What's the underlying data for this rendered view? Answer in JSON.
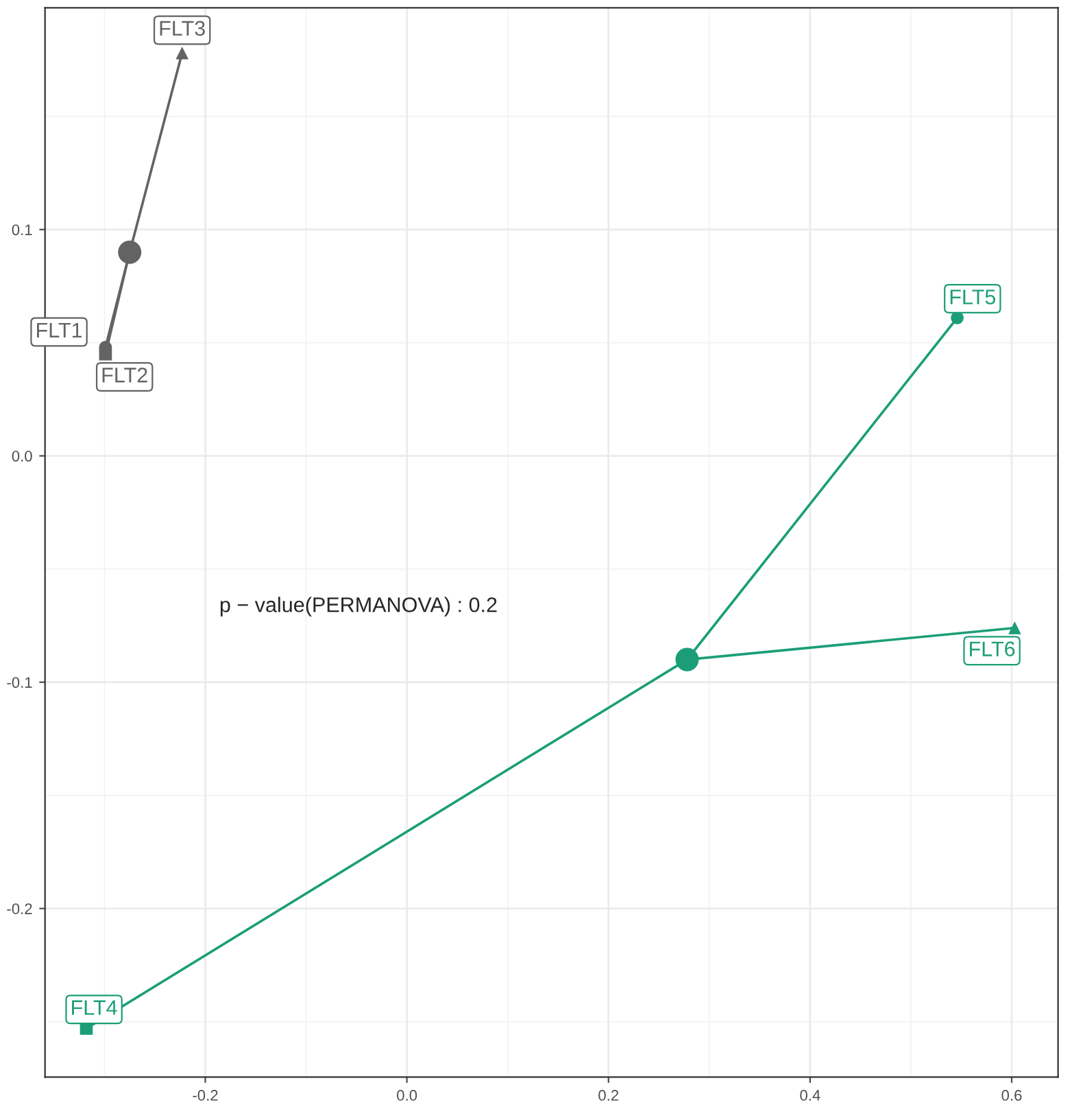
{
  "chart_data": {
    "type": "scatter",
    "xlim": [
      -0.359,
      0.646
    ],
    "ylim": [
      -0.2745,
      0.198
    ],
    "xticks": [
      -0.2,
      {
        "value": 0,
        "label": "0.0"
      },
      0.2,
      0.4,
      0.6
    ],
    "yticks": [
      -0.2,
      -0.1,
      {
        "value": 0,
        "label": "0.0"
      },
      0.1
    ],
    "grid": true,
    "annotations": [
      "p − value(PERMANOVA) : 0.2"
    ],
    "series": [
      {
        "type": "line",
        "color": "#636363",
        "marker": "none",
        "x": [
          -0.299,
          -0.275,
          -0.299,
          -0.275,
          -0.223
        ],
        "values": [
          0.048,
          0.09,
          0.045,
          0.09,
          0.178
        ]
      },
      {
        "type": "line",
        "color": "#1b9e77",
        "marker": "none",
        "x": [
          -0.318,
          0.278,
          0.546,
          0.278,
          0.603
        ],
        "values": [
          -0.253,
          -0.09,
          0.061,
          -0.09,
          -0.076
        ]
      },
      {
        "type": "scatter",
        "color": "#636363",
        "marker": "circle",
        "x": [
          -0.299
        ],
        "values": [
          0.048
        ],
        "value_labels": [
          "FLT1"
        ]
      },
      {
        "type": "scatter",
        "color": "#636363",
        "marker": "square",
        "x": [
          -0.299
        ],
        "values": [
          0.045
        ],
        "value_labels": [
          "FLT2"
        ]
      },
      {
        "type": "scatter",
        "color": "#636363",
        "marker": "triangle",
        "x": [
          -0.223
        ],
        "values": [
          0.178
        ],
        "value_labels": [
          "FLT3"
        ]
      },
      {
        "type": "scatter",
        "color": "#1b9e77",
        "marker": "square",
        "x": [
          -0.318
        ],
        "values": [
          -0.253
        ],
        "value_labels": [
          "FLT4"
        ]
      },
      {
        "type": "scatter",
        "color": "#1b9e77",
        "marker": "circle",
        "x": [
          0.546
        ],
        "values": [
          0.061
        ],
        "value_labels": [
          "FLT5"
        ]
      },
      {
        "type": "scatter",
        "color": "#1b9e77",
        "marker": "triangle",
        "x": [
          0.603
        ],
        "values": [
          -0.076
        ],
        "value_labels": [
          "FLT6"
        ]
      },
      {
        "type": "bubble",
        "color": "#636363",
        "marker": "circle",
        "x": [
          -0.275
        ],
        "values": [
          0.09
        ],
        "sizes": [
          1
        ]
      },
      {
        "type": "bubble",
        "color": "#1b9e77",
        "marker": "circle",
        "x": [
          0.278
        ],
        "values": [
          -0.09
        ],
        "sizes": [
          1
        ]
      }
    ]
  }
}
